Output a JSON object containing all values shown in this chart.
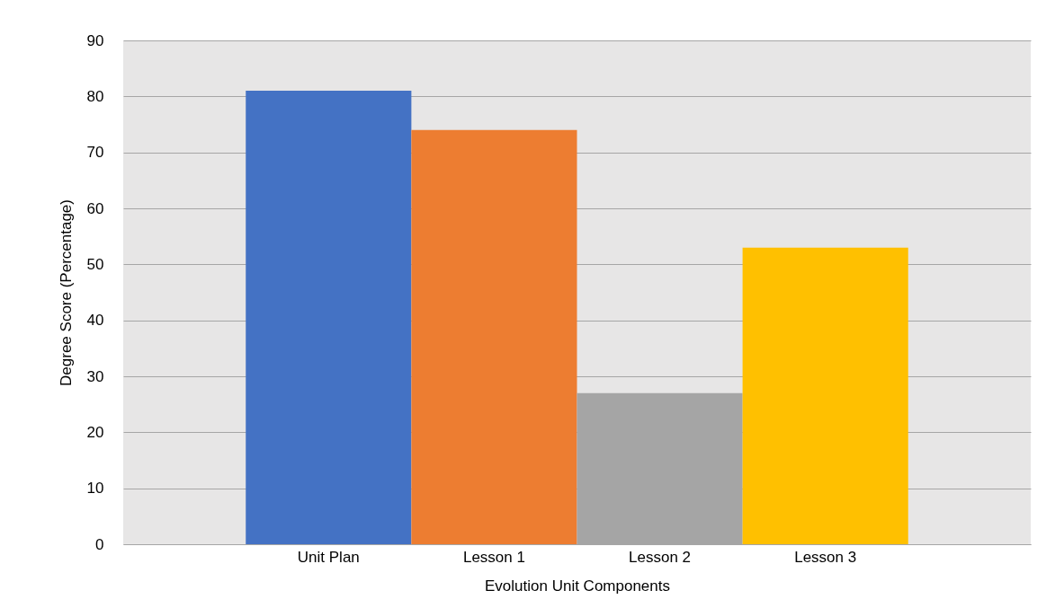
{
  "chart_data": {
    "type": "bar",
    "xlabel": "Evolution Unit Components",
    "ylabel": "Degree Score (Percentage)",
    "categories": [
      "Unit Plan",
      "Lesson 1",
      "Lesson 2",
      "Lesson 3"
    ],
    "values": [
      81,
      74,
      27,
      53
    ],
    "colors": [
      "#4472c4",
      "#ed7d31",
      "#a5a5a5",
      "#ffc000"
    ],
    "ylim": [
      0,
      90
    ],
    "yticks": [
      0,
      10,
      20,
      30,
      40,
      50,
      60,
      70,
      80,
      90
    ],
    "grid": "y"
  }
}
